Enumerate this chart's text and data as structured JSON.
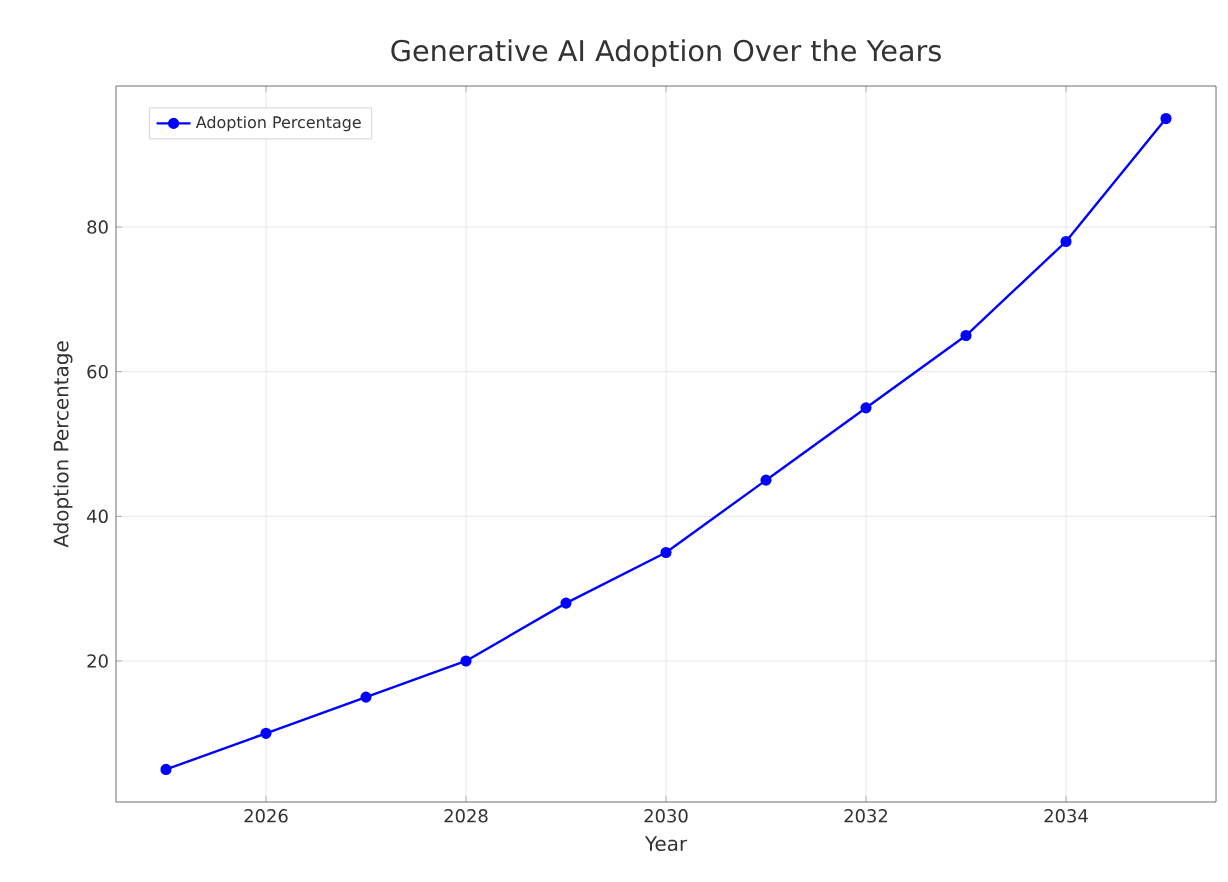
{
  "chart_data": {
    "type": "line",
    "title": "Generative AI Adoption Over the Years",
    "xlabel": "Year",
    "ylabel": "Adoption Percentage",
    "x": [
      2025,
      2026,
      2027,
      2028,
      2029,
      2030,
      2031,
      2032,
      2033,
      2034,
      2035
    ],
    "series": [
      {
        "name": "Adoption Percentage",
        "color": "#0000ff",
        "values": [
          5,
          10,
          15,
          20,
          28,
          35,
          45,
          55,
          65,
          78,
          95
        ]
      }
    ],
    "xlim": [
      2024.5,
      2035.5
    ],
    "xticks": [
      2026,
      2028,
      2030,
      2032,
      2034
    ],
    "ylim": [
      0.5,
      99.5
    ],
    "yticks": [
      20,
      40,
      60,
      80
    ],
    "grid": true,
    "legend": "top left",
    "marker": "circle",
    "line_style": "solid"
  }
}
